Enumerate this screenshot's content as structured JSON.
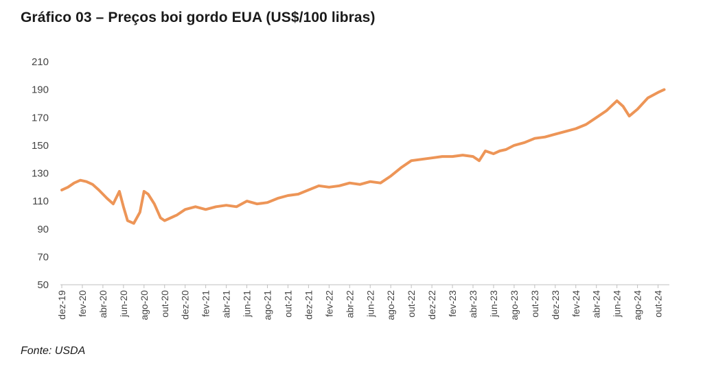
{
  "title": "Gráfico 03 – Preços boi gordo EUA  (US$/100 libras)",
  "source": "Fonte: USDA",
  "colors": {
    "line": "#ED9557",
    "axis": "#bfbfbf",
    "text": "#444444"
  },
  "chart_data": {
    "type": "line",
    "title": "Gráfico 03 – Preços boi gordo EUA  (US$/100 libras)",
    "xlabel": "",
    "ylabel": "",
    "ylim": [
      50,
      210
    ],
    "yticks": [
      50,
      70,
      90,
      110,
      130,
      150,
      170,
      190,
      210
    ],
    "xticks": [
      "dez-19",
      "fev-20",
      "abr-20",
      "jun-20",
      "ago-20",
      "out-20",
      "dez-20",
      "fev-21",
      "abr-21",
      "jun-21",
      "ago-21",
      "out-21",
      "dez-21",
      "fev-22",
      "abr-22",
      "jun-22",
      "ago-22",
      "out-22",
      "dez-22",
      "fev-23",
      "abr-23",
      "jun-23",
      "ago-23",
      "out-23",
      "dez-23",
      "fev-24",
      "abr-24",
      "jun-24",
      "ago-24",
      "out-24"
    ],
    "grid": false,
    "series": [
      {
        "x": [
          0,
          0.3,
          0.6,
          0.9,
          1.2,
          1.5,
          1.8,
          2.2,
          2.5,
          2.8,
          3.0,
          3.2,
          3.5,
          3.8,
          4.0,
          4.2,
          4.5,
          4.8,
          5.0,
          5.3,
          5.6,
          6.0,
          6.5,
          7.0,
          7.5,
          8.0,
          8.5,
          9.0,
          9.5,
          10.0,
          10.5,
          11.0,
          11.5,
          12.0,
          12.5,
          13.0,
          13.5,
          14.0,
          14.5,
          15.0,
          15.5,
          16.0,
          16.5,
          17.0,
          17.5,
          18.0,
          18.5,
          19.0,
          19.5,
          20.0,
          20.3,
          20.6,
          21.0,
          21.3,
          21.6,
          22.0,
          22.5,
          23.0,
          23.5,
          24.0,
          24.5,
          25.0,
          25.5,
          26.0,
          26.5,
          27.0,
          27.3,
          27.6,
          28.0,
          28.5,
          29.0,
          29.3
        ],
        "y": [
          118,
          120,
          123,
          125,
          124,
          122,
          118,
          112,
          108,
          117,
          106,
          96,
          94,
          102,
          117,
          115,
          108,
          98,
          96,
          98,
          100,
          104,
          106,
          104,
          106,
          107,
          106,
          110,
          108,
          109,
          112,
          114,
          115,
          118,
          121,
          120,
          121,
          123,
          122,
          124,
          123,
          128,
          134,
          139,
          140,
          141,
          142,
          142,
          143,
          142,
          139,
          146,
          144,
          146,
          147,
          150,
          152,
          155,
          156,
          158,
          160,
          162,
          165,
          170,
          175,
          182,
          178,
          171,
          176,
          184,
          188,
          190
        ],
        "name": ""
      }
    ]
  }
}
